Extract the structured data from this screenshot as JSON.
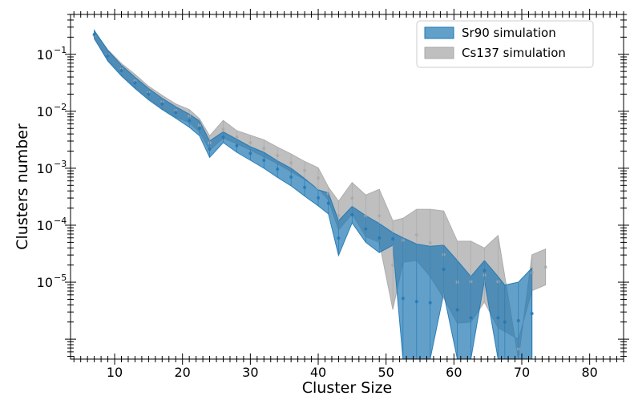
{
  "chart_data": {
    "type": "area",
    "xlabel": "Cluster Size",
    "ylabel": "Clusters number",
    "xlim": [
      3.5,
      85
    ],
    "ylim_log10": [
      -6.35,
      -0.3
    ],
    "yscale": "log",
    "x_ticks": [
      10,
      20,
      30,
      40,
      50,
      60,
      70,
      80
    ],
    "x_tick_labels": [
      "10",
      "20",
      "30",
      "40",
      "50",
      "60",
      "70",
      "80"
    ],
    "y_ticks_log10": [
      -5,
      -4,
      -3,
      -2,
      -1
    ],
    "y_tick_labels": [
      "10",
      "10",
      "10",
      "10",
      "10"
    ],
    "y_tick_exponents": [
      "−5",
      "−4",
      "−3",
      "−2",
      "−1"
    ],
    "legend_position": "top-right",
    "series": [
      {
        "name": "Cs137 simulation",
        "color": "#a9a9a9",
        "alpha": 0.75,
        "x": [
          7,
          9,
          11,
          13,
          15,
          17,
          19,
          21,
          22.5,
          24,
          26,
          28,
          30,
          32,
          34,
          36,
          38,
          40,
          41.5,
          43,
          45,
          47,
          49,
          51,
          52.5,
          54.5,
          56.5,
          58.5,
          60.5,
          62.5,
          64.5,
          66.5,
          69.5,
          71.5,
          73.5
        ],
        "low_log10": [
          -0.73,
          -1.1,
          -1.36,
          -1.58,
          -1.78,
          -1.95,
          -2.1,
          -2.2,
          -2.36,
          -2.68,
          -2.47,
          -2.57,
          -2.68,
          -2.8,
          -2.92,
          -3.06,
          -3.2,
          -3.35,
          -3.56,
          -4.08,
          -3.8,
          -4.2,
          -4.3,
          -5.48,
          -4.65,
          -4.62,
          -4.9,
          -5.28,
          -5.72,
          -5.7,
          -5.35,
          -5.8,
          -6.0,
          -5.15,
          -5.05
        ],
        "high_log10": [
          -0.6,
          -0.92,
          -1.16,
          -1.35,
          -1.56,
          -1.72,
          -1.87,
          -1.97,
          -2.13,
          -2.43,
          -2.16,
          -2.34,
          -2.42,
          -2.5,
          -2.63,
          -2.75,
          -2.88,
          -2.99,
          -3.33,
          -3.58,
          -3.25,
          -3.47,
          -3.37,
          -3.92,
          -3.88,
          -3.72,
          -3.72,
          -3.75,
          -4.28,
          -4.28,
          -4.4,
          -4.18,
          -6.35,
          -4.52,
          -4.42
        ]
      },
      {
        "name": "Sr90 simulation",
        "color": "#1f77b4",
        "alpha": 0.7,
        "x": [
          7,
          9,
          11,
          13,
          15,
          17,
          19,
          21,
          22.5,
          24,
          26,
          28,
          30,
          32,
          34,
          36,
          38,
          40,
          41.5,
          43,
          45,
          47,
          49,
          51,
          52.5,
          54.5,
          56.5,
          58.5,
          60.5,
          62.5,
          64.5,
          66.5,
          67.5,
          69.5,
          71.5
        ],
        "low_log10": [
          -0.72,
          -1.12,
          -1.38,
          -1.6,
          -1.8,
          -1.97,
          -2.12,
          -2.28,
          -2.43,
          -2.81,
          -2.55,
          -2.72,
          -2.86,
          -3.0,
          -3.16,
          -3.31,
          -3.49,
          -3.66,
          -3.8,
          -4.53,
          -3.96,
          -4.3,
          -4.48,
          -4.35,
          -6.35,
          -6.35,
          -6.35,
          -5.2,
          -6.35,
          -6.35,
          -4.97,
          -6.35,
          -6.35,
          -6.35,
          -6.35
        ],
        "high_log10": [
          -0.58,
          -0.93,
          -1.19,
          -1.4,
          -1.6,
          -1.77,
          -1.92,
          -2.05,
          -2.17,
          -2.52,
          -2.36,
          -2.49,
          -2.62,
          -2.72,
          -2.87,
          -3.0,
          -3.18,
          -3.38,
          -3.43,
          -3.92,
          -3.67,
          -3.83,
          -3.97,
          -4.13,
          -4.22,
          -4.33,
          -4.37,
          -4.35,
          -4.62,
          -4.9,
          -4.62,
          -4.9,
          -5.05,
          -5.0,
          -4.75
        ]
      }
    ]
  }
}
